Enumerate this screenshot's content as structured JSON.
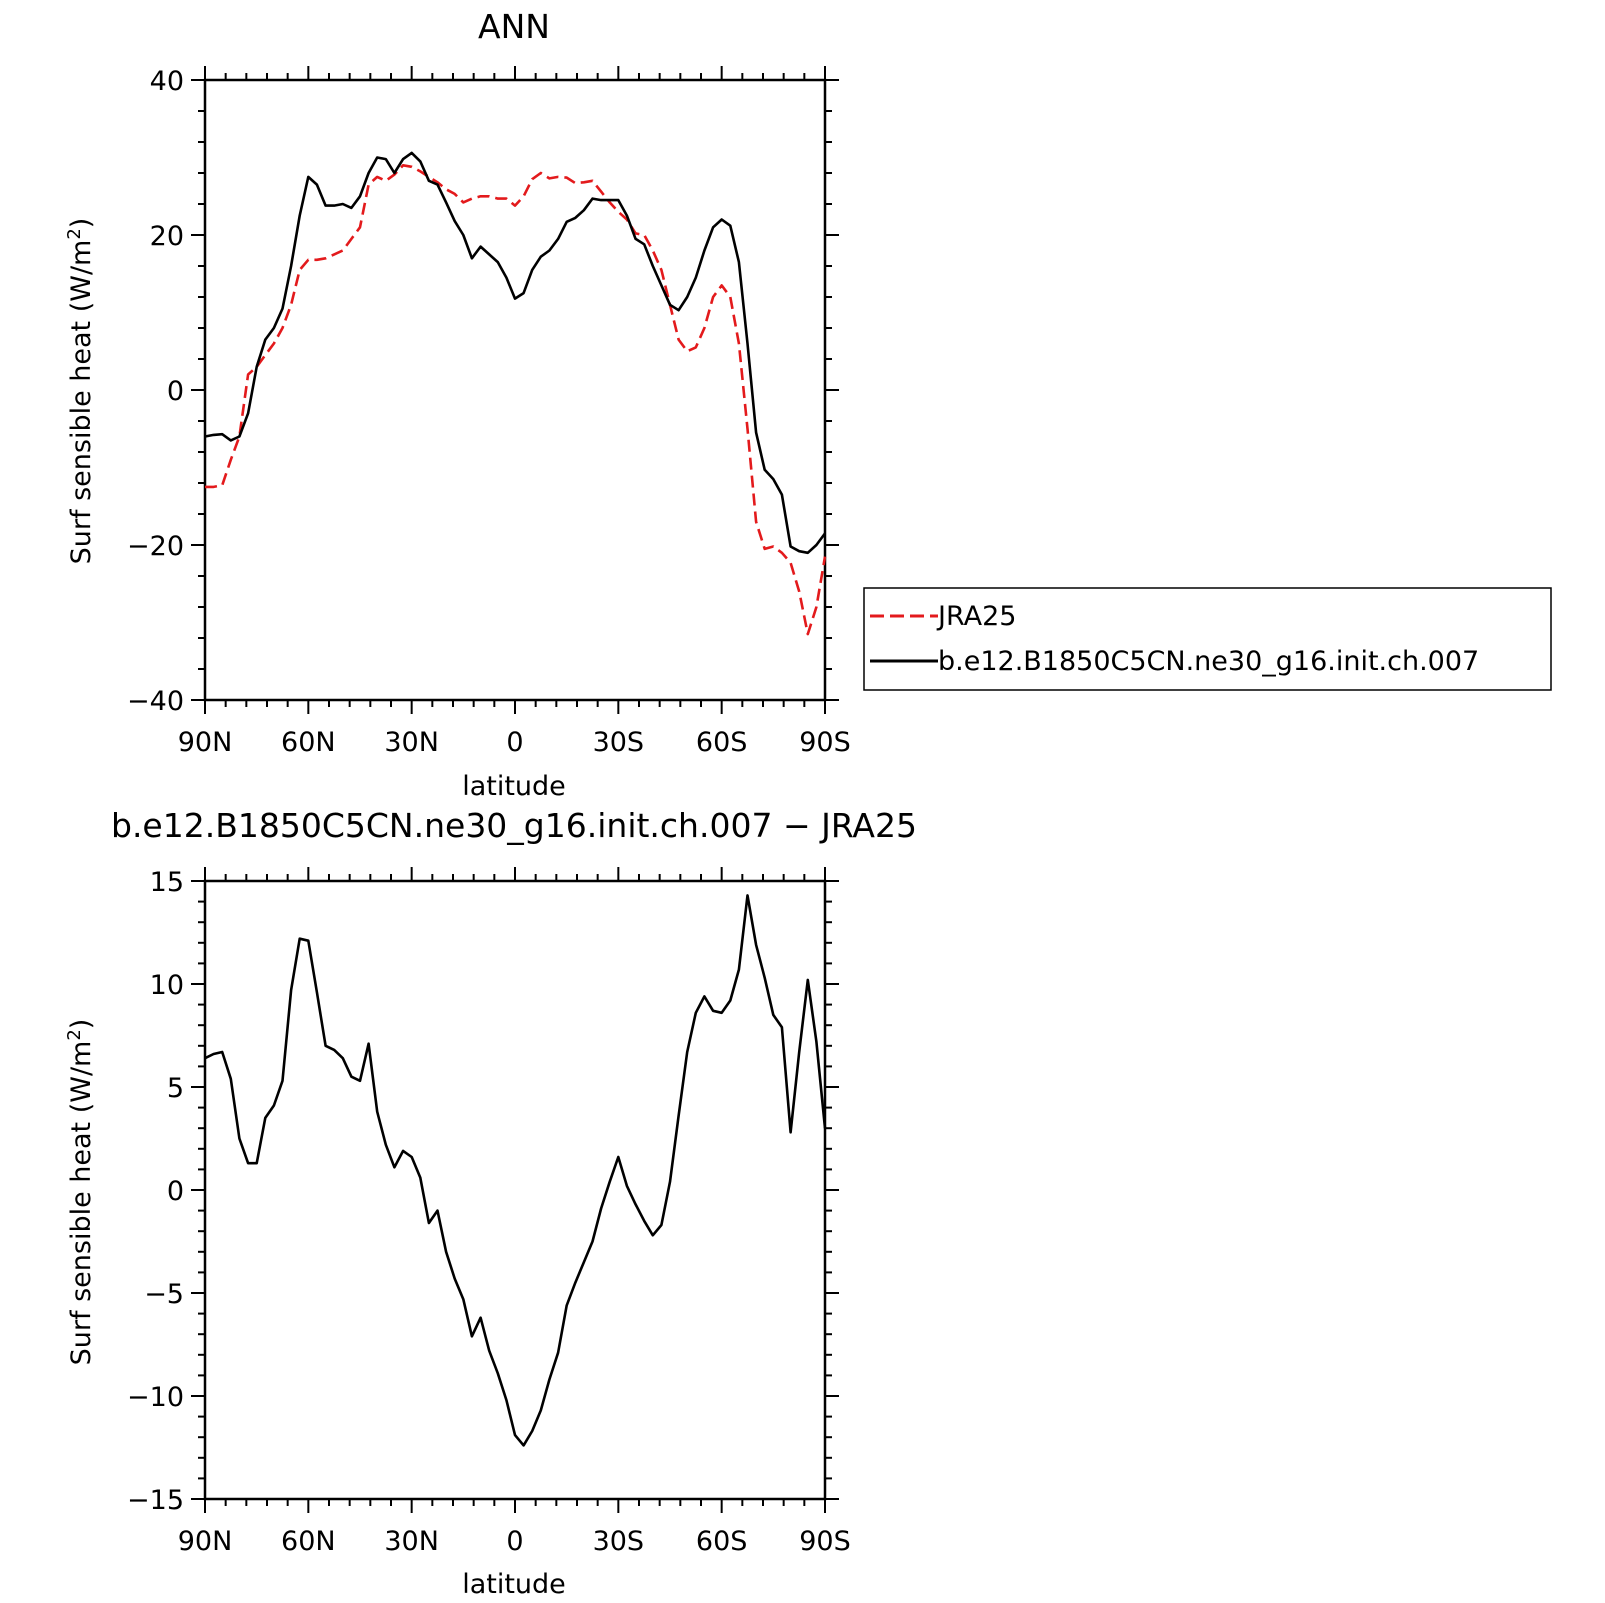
{
  "chart_data": [
    {
      "type": "line",
      "title": "ANN",
      "xlabel": "latitude",
      "ylabel": "Surf sensible heat (W/m",
      "ylabel_sup": "2",
      "ylabel_end": ")",
      "xlim": [
        90,
        -90
      ],
      "ylim": [
        -40,
        40
      ],
      "xticks": [
        90,
        60,
        30,
        0,
        -30,
        -60,
        -90
      ],
      "xtick_labels": [
        "90N",
        "60N",
        "30N",
        "0",
        "30S",
        "60S",
        "90S"
      ],
      "yticks": [
        40,
        20,
        0,
        -20,
        -40
      ],
      "ytick_labels": [
        "40",
        "20",
        "0",
        "−20",
        "−40"
      ],
      "legend": {
        "placement": "right-outside",
        "entries": [
          "JRA25",
          "b.e12.B1850C5CN.ne30_g16.init.ch.007"
        ]
      },
      "series": [
        {
          "name": "JRA25",
          "color": "#e31a1c",
          "dash": "dashed",
          "points": [
            [
              90,
              -12.5
            ],
            [
              87.5,
              -12.5
            ],
            [
              85,
              -12.3
            ],
            [
              82.5,
              -9
            ],
            [
              80,
              -6
            ],
            [
              77.5,
              2
            ],
            [
              75,
              3
            ],
            [
              72.5,
              4.5
            ],
            [
              70,
              6
            ],
            [
              67.5,
              8
            ],
            [
              65,
              11
            ],
            [
              62.5,
              15.5
            ],
            [
              60,
              16.8
            ],
            [
              57.5,
              16.8
            ],
            [
              55,
              17
            ],
            [
              52.5,
              17.5
            ],
            [
              50,
              18
            ],
            [
              47.5,
              19.5
            ],
            [
              45,
              21
            ],
            [
              42.5,
              26.5
            ],
            [
              40,
              27.5
            ],
            [
              37.5,
              27
            ],
            [
              35,
              27.8
            ],
            [
              32.5,
              29
            ],
            [
              30,
              28.8
            ],
            [
              27.5,
              28.2
            ],
            [
              25,
              27.5
            ],
            [
              22.5,
              26.8
            ],
            [
              20,
              25.9
            ],
            [
              17.5,
              25.3
            ],
            [
              15,
              24.2
            ],
            [
              12.5,
              24.7
            ],
            [
              10,
              25
            ],
            [
              7.5,
              25
            ],
            [
              5,
              24.7
            ],
            [
              2.5,
              24.7
            ],
            [
              0,
              23.8
            ],
            [
              -2.5,
              25
            ],
            [
              -5,
              27.2
            ],
            [
              -7.5,
              28
            ],
            [
              -10,
              27.3
            ],
            [
              -12.5,
              27.5
            ],
            [
              -15,
              27.4
            ],
            [
              -17.5,
              26.7
            ],
            [
              -20,
              26.8
            ],
            [
              -22.5,
              27
            ],
            [
              -25,
              25.6
            ],
            [
              -27.5,
              24.2
            ],
            [
              -30,
              23
            ],
            [
              -32.5,
              22
            ],
            [
              -35,
              20.2
            ],
            [
              -37.5,
              20
            ],
            [
              -40,
              18
            ],
            [
              -42.5,
              15.5
            ],
            [
              -45,
              11
            ],
            [
              -47.5,
              6.5
            ],
            [
              -50,
              5
            ],
            [
              -52.5,
              5.5
            ],
            [
              -55,
              8
            ],
            [
              -57.5,
              12
            ],
            [
              -60,
              13.5
            ],
            [
              -62.5,
              12
            ],
            [
              -65,
              6
            ],
            [
              -67.5,
              -5
            ],
            [
              -70,
              -17
            ],
            [
              -72.5,
              -20.5
            ],
            [
              -75,
              -20.2
            ],
            [
              -77.5,
              -21
            ],
            [
              -80,
              -22.3
            ],
            [
              -82.5,
              -26
            ],
            [
              -85,
              -31.5
            ],
            [
              -87.5,
              -28
            ],
            [
              -90,
              -21.5
            ]
          ]
        },
        {
          "name": "b.e12.B1850C5CN.ne30_g16.init.ch.007",
          "color": "#000000",
          "dash": "solid",
          "points": [
            [
              90,
              -6
            ],
            [
              87.5,
              -5.8
            ],
            [
              85,
              -5.7
            ],
            [
              82.5,
              -6.5
            ],
            [
              80,
              -6
            ],
            [
              77.5,
              -3
            ],
            [
              75,
              3
            ],
            [
              72.5,
              6.5
            ],
            [
              70,
              8
            ],
            [
              67.5,
              10.5
            ],
            [
              65,
              16
            ],
            [
              62.5,
              22.5
            ],
            [
              60,
              27.5
            ],
            [
              57.5,
              26.5
            ],
            [
              55,
              23.8
            ],
            [
              52.5,
              23.8
            ],
            [
              50,
              24
            ],
            [
              47.5,
              23.5
            ],
            [
              45,
              25
            ],
            [
              42.5,
              28
            ],
            [
              40,
              30
            ],
            [
              37.5,
              29.8
            ],
            [
              35,
              28
            ],
            [
              32.5,
              29.8
            ],
            [
              30,
              30.6
            ],
            [
              27.5,
              29.5
            ],
            [
              25,
              27
            ],
            [
              22.5,
              26.5
            ],
            [
              20,
              24.2
            ],
            [
              17.5,
              21.8
            ],
            [
              15,
              20
            ],
            [
              12.5,
              17
            ],
            [
              10,
              18.5
            ],
            [
              7.5,
              17.5
            ],
            [
              5,
              16.5
            ],
            [
              2.5,
              14.5
            ],
            [
              0,
              11.8
            ],
            [
              -2.5,
              12.5
            ],
            [
              -5,
              15.5
            ],
            [
              -7.5,
              17.2
            ],
            [
              -10,
              18
            ],
            [
              -12.5,
              19.5
            ],
            [
              -15,
              21.7
            ],
            [
              -17.5,
              22.2
            ],
            [
              -20,
              23.2
            ],
            [
              -22.5,
              24.7
            ],
            [
              -25,
              24.5
            ],
            [
              -27.5,
              24.5
            ],
            [
              -30,
              24.5
            ],
            [
              -32.5,
              22.5
            ],
            [
              -35,
              19.5
            ],
            [
              -37.5,
              18.8
            ],
            [
              -40,
              16
            ],
            [
              -42.5,
              13.5
            ],
            [
              -45,
              11
            ],
            [
              -47.5,
              10.3
            ],
            [
              -50,
              12
            ],
            [
              -52.5,
              14.5
            ],
            [
              -55,
              18
            ],
            [
              -57.5,
              21
            ],
            [
              -60,
              22
            ],
            [
              -62.5,
              21.2
            ],
            [
              -65,
              16.5
            ],
            [
              -67.5,
              6
            ],
            [
              -70,
              -5.5
            ],
            [
              -72.5,
              -10.3
            ],
            [
              -75,
              -11.5
            ],
            [
              -77.5,
              -13.5
            ],
            [
              -80,
              -20.2
            ],
            [
              -82.5,
              -20.8
            ],
            [
              -85,
              -21
            ],
            [
              -87.5,
              -20
            ],
            [
              -90,
              -18.5
            ]
          ]
        }
      ]
    },
    {
      "type": "line",
      "title": "b.e12.B1850C5CN.ne30_g16.init.ch.007 − JRA25",
      "xlabel": "latitude",
      "ylabel": "Surf sensible heat (W/m",
      "ylabel_sup": "2",
      "ylabel_end": ")",
      "xlim": [
        90,
        -90
      ],
      "ylim": [
        -15,
        15
      ],
      "xticks": [
        90,
        60,
        30,
        0,
        -30,
        -60,
        -90
      ],
      "xtick_labels": [
        "90N",
        "60N",
        "30N",
        "0",
        "30S",
        "60S",
        "90S"
      ],
      "yticks": [
        15,
        10,
        5,
        0,
        -5,
        -10,
        -15
      ],
      "ytick_labels": [
        "15",
        "10",
        "5",
        "0",
        "−5",
        "−10",
        "−15"
      ],
      "series": [
        {
          "color": "#000000",
          "dash": "solid",
          "points": [
            [
              90,
              6.4
            ],
            [
              87.5,
              6.6
            ],
            [
              85,
              6.7
            ],
            [
              82.5,
              5.4
            ],
            [
              80,
              2.5
            ],
            [
              77.5,
              1.3
            ],
            [
              75,
              1.3
            ],
            [
              72.5,
              3.5
            ],
            [
              70,
              4.1
            ],
            [
              67.5,
              5.3
            ],
            [
              65,
              9.7
            ],
            [
              62.5,
              12.2
            ],
            [
              60,
              12.1
            ],
            [
              57.5,
              9.6
            ],
            [
              55,
              7
            ],
            [
              52.5,
              6.8
            ],
            [
              50,
              6.4
            ],
            [
              47.5,
              5.5
            ],
            [
              45,
              5.3
            ],
            [
              42.5,
              7.1
            ],
            [
              40,
              3.8
            ],
            [
              37.5,
              2.2
            ],
            [
              35,
              1.1
            ],
            [
              32.5,
              1.9
            ],
            [
              30,
              1.6
            ],
            [
              27.5,
              0.6
            ],
            [
              25,
              -1.6
            ],
            [
              22.5,
              -1
            ],
            [
              20,
              -3
            ],
            [
              17.5,
              -4.3
            ],
            [
              15,
              -5.3
            ],
            [
              12.5,
              -7.1
            ],
            [
              10,
              -6.2
            ],
            [
              7.5,
              -7.8
            ],
            [
              5,
              -8.9
            ],
            [
              2.5,
              -10.2
            ],
            [
              0,
              -11.9
            ],
            [
              -2.5,
              -12.4
            ],
            [
              -5,
              -11.7
            ],
            [
              -7.5,
              -10.7
            ],
            [
              -10,
              -9.2
            ],
            [
              -12.5,
              -7.9
            ],
            [
              -15,
              -5.6
            ],
            [
              -17.5,
              -4.5
            ],
            [
              -20,
              -3.5
            ],
            [
              -22.5,
              -2.5
            ],
            [
              -25,
              -0.9
            ],
            [
              -27.5,
              0.4
            ],
            [
              -30,
              1.6
            ],
            [
              -32.5,
              0.2
            ],
            [
              -35,
              -0.7
            ],
            [
              -37.5,
              -1.5
            ],
            [
              -40,
              -2.2
            ],
            [
              -42.5,
              -1.7
            ],
            [
              -45,
              0.4
            ],
            [
              -47.5,
              3.6
            ],
            [
              -50,
              6.7
            ],
            [
              -52.5,
              8.6
            ],
            [
              -55,
              9.4
            ],
            [
              -57.5,
              8.7
            ],
            [
              -60,
              8.6
            ],
            [
              -62.5,
              9.2
            ],
            [
              -65,
              10.7
            ],
            [
              -67.5,
              14.3
            ],
            [
              -70,
              11.9
            ],
            [
              -72.5,
              10.3
            ],
            [
              -75,
              8.5
            ],
            [
              -77.5,
              7.9
            ],
            [
              -80,
              2.8
            ],
            [
              -82.5,
              6.7
            ],
            [
              -85,
              10.2
            ],
            [
              -87.5,
              7.2
            ],
            [
              -90,
              3
            ]
          ]
        }
      ]
    }
  ]
}
